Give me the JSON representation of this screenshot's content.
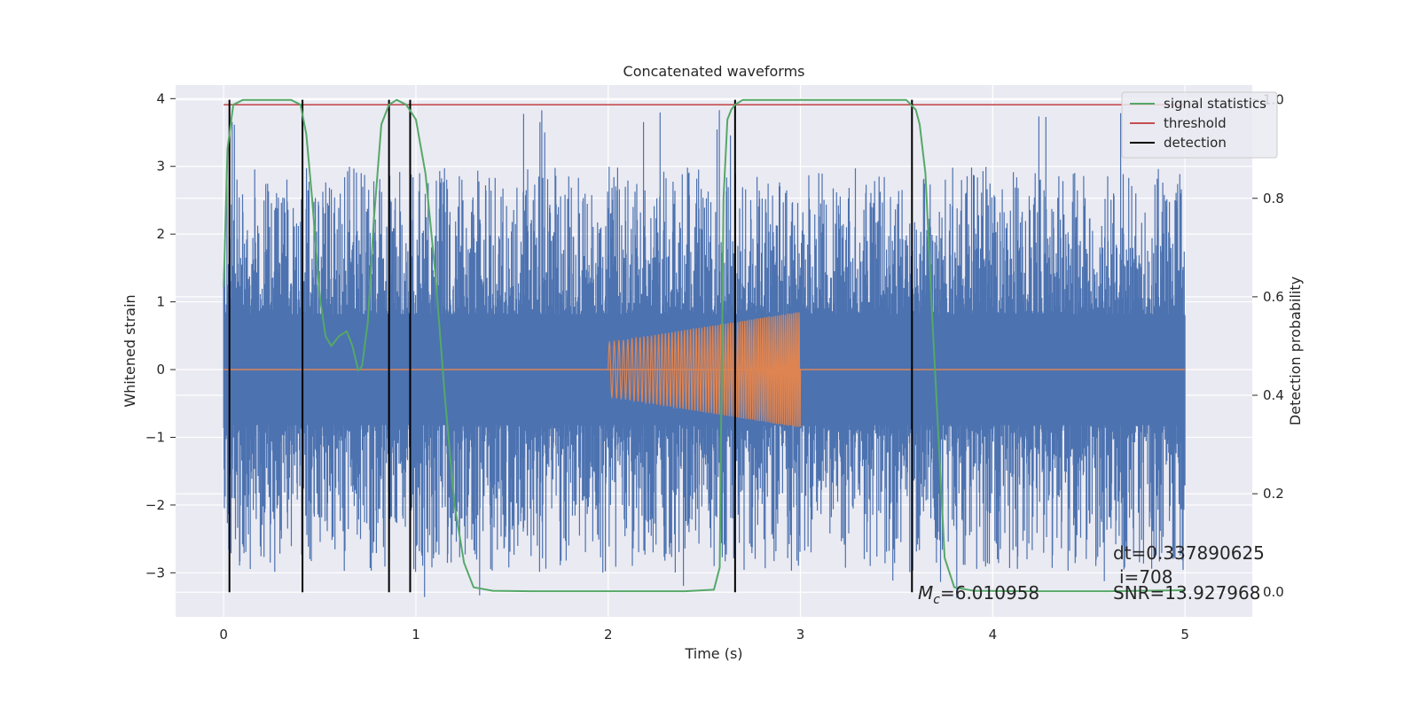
{
  "chart_data": {
    "type": "line",
    "title": "Concatenated waveforms",
    "xlabel": "Time (s)",
    "ylabel": "Whitened strain",
    "y2label": "Detection probability",
    "xlim": [
      -0.25,
      5.35
    ],
    "ylim": [
      -3.65,
      4.2
    ],
    "y2lim": [
      -0.05,
      1.03
    ],
    "x_ticks": [
      0,
      1,
      2,
      3,
      4,
      5
    ],
    "y_ticks": [
      -3,
      -2,
      -1,
      0,
      1,
      2,
      3,
      4
    ],
    "y2_ticks": [
      0.0,
      0.2,
      0.4,
      0.6,
      0.8,
      1.0
    ],
    "x_tick_labels": [
      "0",
      "1",
      "2",
      "3",
      "4",
      "5"
    ],
    "y_tick_labels": [
      "−3",
      "−2",
      "−1",
      "0",
      "1",
      "2",
      "3",
      "4"
    ],
    "y2_tick_labels": [
      "0.0",
      "0.2",
      "0.4",
      "0.6",
      "0.8",
      "1.0"
    ],
    "grid": true,
    "legend_position": "top-right",
    "colors": {
      "background": "#eaeaf2",
      "strain": "#4c72b0",
      "injected_waveform": "#dd8452",
      "signal_statistics": "#55a868",
      "threshold": "#c44e52",
      "detection": "#000000"
    },
    "series": [
      {
        "name": "signal statistics",
        "axis": "right",
        "x": [
          0.0,
          0.02,
          0.05,
          0.1,
          0.2,
          0.35,
          0.4,
          0.43,
          0.46,
          0.5,
          0.53,
          0.56,
          0.6,
          0.64,
          0.67,
          0.7,
          0.72,
          0.75,
          0.78,
          0.82,
          0.86,
          0.9,
          0.95,
          1.0,
          1.05,
          1.1,
          1.15,
          1.2,
          1.25,
          1.3,
          1.4,
          1.6,
          2.0,
          2.4,
          2.55,
          2.58,
          2.6,
          2.62,
          2.64,
          2.66,
          2.7,
          2.8,
          3.0,
          3.3,
          3.55,
          3.6,
          3.62,
          3.65,
          3.68,
          3.72,
          3.75,
          3.8,
          3.9,
          4.2,
          4.6,
          5.0
        ],
        "values": [
          0.62,
          0.9,
          0.99,
          1.0,
          1.0,
          1.0,
          0.99,
          0.93,
          0.8,
          0.6,
          0.52,
          0.5,
          0.52,
          0.53,
          0.5,
          0.45,
          0.46,
          0.55,
          0.75,
          0.95,
          0.99,
          1.0,
          0.99,
          0.96,
          0.85,
          0.65,
          0.4,
          0.18,
          0.06,
          0.01,
          0.003,
          0.002,
          0.002,
          0.002,
          0.005,
          0.05,
          0.8,
          0.96,
          0.98,
          0.99,
          1.0,
          1.0,
          1.0,
          1.0,
          1.0,
          0.98,
          0.95,
          0.85,
          0.6,
          0.3,
          0.07,
          0.01,
          0.003,
          0.002,
          0.002,
          0.004
        ]
      },
      {
        "name": "threshold",
        "axis": "right",
        "x": [
          0.0,
          5.0
        ],
        "values": [
          0.99,
          0.99
        ]
      }
    ],
    "detection": {
      "name": "detection",
      "x": [
        0.03,
        0.41,
        0.86,
        0.97,
        2.66,
        3.58
      ],
      "ymin": 0.0,
      "ymax": 1.0
    },
    "strain": {
      "x_range": [
        0.0,
        5.0
      ],
      "core_amplitude": 0.82,
      "spike_max": 3.85,
      "spike_min": -3.38
    },
    "injection": {
      "x_range": [
        2.0,
        3.0
      ],
      "amplitude_start": 0.4,
      "amplitude_end": 0.86,
      "cycles": 70
    },
    "annotations": {
      "mc_symbol": "M",
      "mc_subscript": "c",
      "mc_value": "=6.010958",
      "dt": "dt=0.337890625",
      "i": "i=708",
      "snr": "SNR=13.927968"
    }
  }
}
